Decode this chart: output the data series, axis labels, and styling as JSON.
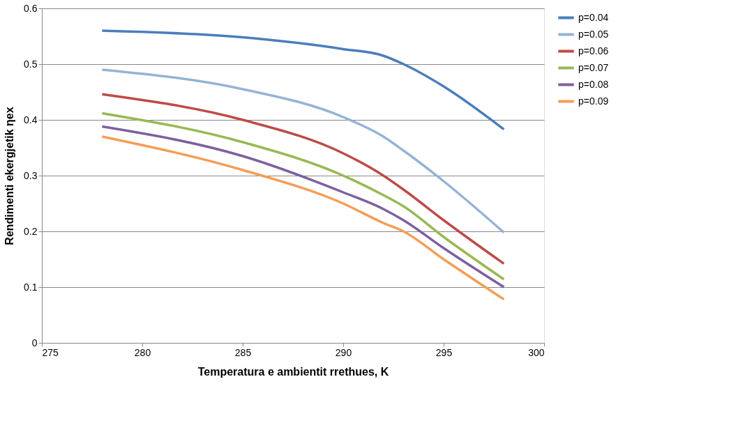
{
  "chart_data": {
    "type": "line",
    "xlabel": "Temperatura e ambientit rrethues, K",
    "ylabel": "Rendimenti ekergjetik ηex",
    "x": [
      278,
      285,
      290,
      292,
      293,
      295,
      298
    ],
    "series": [
      {
        "name": "p=0.04",
        "color": "#4a7ebb",
        "values": [
          0.56,
          0.548,
          0.527,
          0.515,
          0.5,
          0.46,
          0.383
        ]
      },
      {
        "name": "p=0.05",
        "color": "#95b3d7",
        "values": [
          0.49,
          0.455,
          0.405,
          0.37,
          0.345,
          0.29,
          0.198
        ]
      },
      {
        "name": "p=0.06",
        "color": "#be4b48",
        "values": [
          0.446,
          0.4,
          0.34,
          0.3,
          0.275,
          0.22,
          0.142
        ]
      },
      {
        "name": "p=0.07",
        "color": "#98b954",
        "values": [
          0.412,
          0.36,
          0.3,
          0.265,
          0.245,
          0.19,
          0.114
        ]
      },
      {
        "name": "p=0.08",
        "color": "#7d60a0",
        "values": [
          0.388,
          0.335,
          0.27,
          0.24,
          0.22,
          0.17,
          0.1
        ]
      },
      {
        "name": "p=0.09",
        "color": "#f59d56",
        "values": [
          0.37,
          0.31,
          0.25,
          0.215,
          0.2,
          0.15,
          0.078
        ]
      }
    ],
    "xlim": [
      275,
      300
    ],
    "xticks": [
      275,
      280,
      285,
      290,
      295,
      300
    ],
    "ylim": [
      0,
      0.6
    ],
    "yticks": [
      0,
      0.1,
      0.2,
      0.3,
      0.4,
      0.5,
      0.6
    ],
    "grid": "y",
    "legend": "right",
    "marker": "none",
    "line_style": "solid"
  }
}
